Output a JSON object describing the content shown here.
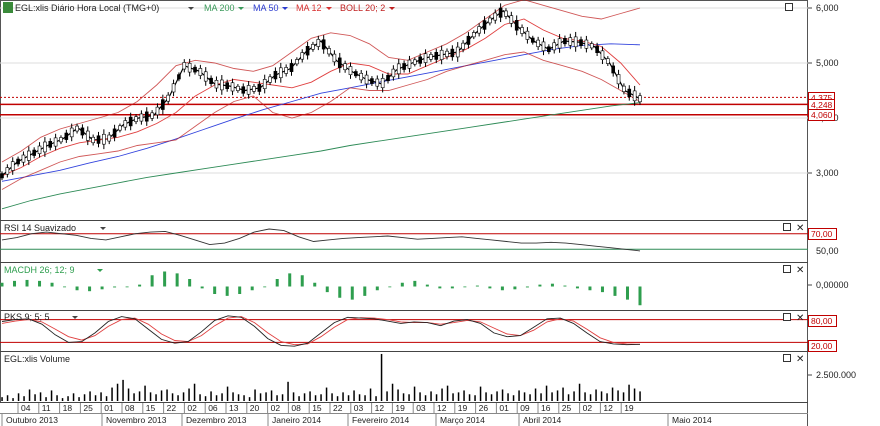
{
  "colors": {
    "price": "#000000",
    "ma200": "#2e8b57",
    "ma50": "#3344dd",
    "ma12": "#e04040",
    "boll": "#c02020",
    "rsi": "#333333",
    "macd_bar": "#2e9e4e",
    "pks_k": "#222222",
    "pks_d": "#e04040",
    "ref_line": "#c00000",
    "volume_bar": "#000000",
    "axis_text": "#222222",
    "legend_ma200": "#3a9a5a",
    "legend_ma50": "#2a3ad0",
    "legend_ma12": "#d83030",
    "legend_boll": "#c02020"
  },
  "icons": [
    "chart-type-icon",
    "window-restore-icon",
    "close-icon",
    "dropdown-arrow-icon"
  ],
  "legend": {
    "title": "EGL:xlis Diário Hora Local (TMG+0)",
    "ma200": "MA 200",
    "ma50": "MA 50",
    "ma12": "MA 12",
    "boll": "BOLL 20; 2"
  },
  "panels": {
    "rsi_title": "RSI 14 Suavizado",
    "macd_title": "MACDH 26; 12; 9",
    "pks_title": "PKS 9; 5; 5",
    "volume_title": "EGL:xlis Volume"
  },
  "price_axis": {
    "ticks": [
      "6,000",
      "5,000",
      "4,000",
      "3,000"
    ],
    "badges": [
      "4,375",
      "4,248",
      "4,060"
    ]
  },
  "rsi_axis": {
    "ticks": [
      "70,00",
      "50,00"
    ]
  },
  "macd_axis": {
    "ticks": [
      "0,00000"
    ]
  },
  "pks_axis": {
    "ticks": [
      "80,00",
      "20,00"
    ]
  },
  "volume_axis": {
    "ticks": [
      "2.500.000"
    ]
  },
  "date_axis": {
    "days": [
      "04",
      "11",
      "18",
      "25",
      "01",
      "08",
      "15",
      "22",
      "02",
      "06",
      "13",
      "20",
      "02",
      "08",
      "15",
      "22",
      "03",
      "12",
      "19",
      "03",
      "12",
      "19",
      "26",
      "01",
      "09",
      "16",
      "25",
      "02",
      "12",
      "19"
    ],
    "months": [
      "Outubro 2013",
      "Novembro 2013",
      "Dezembro 2013",
      "Janeiro 2014",
      "Fevereiro 2014",
      "Março 2014",
      "Abril 2014",
      "Maio 2014"
    ]
  },
  "chart_data": [
    {
      "type": "line",
      "panel": "price",
      "title": "EGL:xlis Diário Hora Local (TMG+0)",
      "ylim": [
        2.2,
        6.2
      ],
      "ref_lines": [
        4.375,
        4.248,
        4.06
      ],
      "series": [
        {
          "name": "Price",
          "values": [
            2.95,
            3.2,
            3.35,
            3.5,
            3.62,
            3.82,
            3.6,
            3.62,
            3.88,
            4.0,
            4.05,
            4.38,
            4.95,
            4.85,
            4.62,
            4.58,
            4.5,
            4.55,
            4.78,
            4.9,
            5.2,
            5.4,
            5.05,
            4.85,
            4.7,
            4.62,
            4.88,
            5.0,
            5.1,
            5.15,
            5.2,
            5.5,
            5.75,
            5.95,
            5.65,
            5.4,
            5.25,
            5.4,
            5.38,
            5.3,
            5.0,
            4.5,
            4.35
          ]
        },
        {
          "name": "MA 200",
          "values": [
            2.35,
            2.5,
            2.62,
            2.72,
            2.82,
            2.92,
            3.0,
            3.08,
            3.16,
            3.24,
            3.32,
            3.4,
            3.5,
            3.58,
            3.66,
            3.74,
            3.82,
            3.9,
            3.98,
            4.06,
            4.14,
            4.22,
            4.28
          ]
        },
        {
          "name": "MA 50",
          "values": [
            2.85,
            2.95,
            3.05,
            3.18,
            3.3,
            3.45,
            3.62,
            3.8,
            3.98,
            4.15,
            4.3,
            4.45,
            4.55,
            4.65,
            4.75,
            4.85,
            4.95,
            5.05,
            5.15,
            5.25,
            5.32,
            5.35,
            5.33
          ]
        },
        {
          "name": "MA 12",
          "values": [
            2.95,
            3.1,
            3.3,
            3.45,
            3.55,
            3.6,
            3.65,
            3.75,
            3.9,
            4.1,
            4.4,
            4.6,
            4.7,
            4.65,
            4.6,
            4.55,
            4.65,
            4.85,
            5.0,
            4.95,
            4.8,
            4.8,
            4.95,
            5.1,
            5.25,
            5.45,
            5.7,
            5.8,
            5.6,
            5.45,
            5.4,
            5.3,
            5.0,
            4.6
          ]
        },
        {
          "name": "BOLL 20; 2 upper",
          "values": [
            3.2,
            3.4,
            3.65,
            3.8,
            3.9,
            4.0,
            4.1,
            4.3,
            4.6,
            4.95,
            5.05,
            5.0,
            4.9,
            4.85,
            4.95,
            5.2,
            5.45,
            5.55,
            5.5,
            5.35,
            5.1,
            5.05,
            5.2,
            5.35,
            5.55,
            5.8,
            6.05,
            6.15,
            6.05,
            5.95,
            5.85,
            5.8,
            5.9,
            6.0
          ]
        },
        {
          "name": "BOLL 20; 2 lower",
          "values": [
            2.7,
            2.9,
            3.05,
            3.2,
            3.3,
            3.35,
            3.4,
            3.5,
            3.55,
            3.6,
            3.85,
            4.1,
            4.3,
            4.4,
            4.1,
            4.0,
            4.1,
            4.3,
            4.55,
            4.5,
            4.5,
            4.6,
            4.7,
            4.85,
            4.95,
            5.05,
            5.15,
            5.2,
            5.05,
            4.95,
            4.85,
            4.7,
            4.5,
            4.3
          ]
        }
      ]
    },
    {
      "type": "line",
      "panel": "rsi",
      "title": "RSI 14 Suavizado",
      "ylim": [
        35,
        85
      ],
      "ref_lines": [
        70,
        50
      ],
      "series": [
        {
          "name": "RSI 14 Suavizado",
          "values": [
            62,
            65,
            70,
            72,
            70,
            68,
            64,
            62,
            66,
            70,
            72,
            73,
            68,
            62,
            56,
            58,
            64,
            72,
            76,
            74,
            66,
            60,
            62,
            64,
            65,
            66,
            67,
            65,
            63,
            64,
            65,
            66,
            64,
            62,
            60,
            58,
            58,
            59,
            58,
            56,
            54,
            52,
            50,
            48
          ]
        }
      ]
    },
    {
      "type": "bar",
      "panel": "macd",
      "title": "MACDH 26; 12; 9",
      "ylim": [
        -0.12,
        0.12
      ],
      "series": [
        {
          "name": "MACDH 26; 12; 9",
          "values": [
            0.02,
            0.03,
            0.035,
            0.03,
            0.02,
            0.0,
            -0.02,
            -0.025,
            -0.015,
            -0.005,
            0.0,
            0.01,
            0.06,
            0.08,
            0.07,
            0.04,
            -0.01,
            -0.04,
            -0.05,
            -0.04,
            -0.02,
            0.0,
            0.04,
            0.07,
            0.06,
            0.02,
            -0.03,
            -0.06,
            -0.07,
            -0.05,
            -0.02,
            0.0,
            0.02,
            0.03,
            0.01,
            -0.01,
            -0.01,
            0.0,
            0.005,
            -0.01,
            -0.02,
            -0.015,
            -0.005,
            0.01,
            0.015,
            0.005,
            -0.01,
            -0.02,
            -0.03,
            -0.05,
            -0.07,
            -0.1
          ]
        }
      ]
    },
    {
      "type": "line",
      "panel": "pks",
      "title": "PKS 9; 5; 5",
      "ylim": [
        0,
        100
      ],
      "ref_lines": [
        80,
        20
      ],
      "series": [
        {
          "name": "PKS %K",
          "values": [
            75,
            80,
            82,
            68,
            40,
            20,
            22,
            45,
            75,
            88,
            82,
            55,
            28,
            18,
            22,
            48,
            78,
            90,
            86,
            62,
            30,
            12,
            10,
            18,
            45,
            72,
            86,
            84,
            82,
            76,
            70,
            74,
            72,
            64,
            76,
            80,
            70,
            45,
            35,
            38,
            60,
            82,
            84,
            70,
            45,
            22,
            16,
            14,
            15
          ]
        },
        {
          "name": "PKS %D",
          "values": [
            70,
            76,
            80,
            74,
            55,
            35,
            26,
            38,
            62,
            80,
            84,
            68,
            42,
            25,
            22,
            38,
            64,
            84,
            88,
            72,
            45,
            22,
            14,
            16,
            35,
            60,
            80,
            85,
            84,
            80,
            74,
            72,
            72,
            68,
            72,
            78,
            74,
            58,
            42,
            38,
            52,
            74,
            82,
            76,
            55,
            32,
            20,
            16,
            15
          ]
        }
      ]
    },
    {
      "type": "bar",
      "panel": "volume",
      "title": "EGL:xlis Volume",
      "ylim": [
        0,
        5000000
      ],
      "series": [
        {
          "name": "EGL:xlis Volume",
          "values": [
            400000,
            600000,
            300000,
            800000,
            500000,
            1200000,
            700000,
            900000,
            400000,
            1100000,
            600000,
            300000,
            500000,
            800000,
            400000,
            700000,
            1000000,
            600000,
            900000,
            500000,
            1400000,
            1800000,
            2200000,
            1300000,
            800000,
            1000000,
            1600000,
            900000,
            700000,
            1100000,
            1200000,
            800000,
            600000,
            900000,
            1300000,
            1800000,
            700000,
            500000,
            1000000,
            600000,
            800000,
            1500000,
            900000,
            700000,
            600000,
            400000,
            1200000,
            800000,
            900000,
            1100000,
            600000,
            700000,
            2000000,
            900000,
            500000,
            800000,
            1000000,
            600000,
            700000,
            1400000,
            800000,
            500000,
            900000,
            600000,
            1100000,
            700000,
            600000,
            1300000,
            500000,
            4900000,
            1000000,
            1800000,
            1200000,
            800000,
            700000,
            1500000,
            900000,
            600000,
            1000000,
            700000,
            1300000,
            1600000,
            800000,
            900000,
            1100000,
            700000,
            600000,
            1500000,
            900000,
            700000,
            1000000,
            1200000,
            800000,
            600000,
            1100000,
            900000,
            700000,
            1300000,
            800000,
            1600000,
            900000,
            1100000,
            1400000,
            700000,
            1000000,
            1800000,
            900000,
            700000,
            1200000,
            1000000,
            800000,
            1400000,
            1100000,
            900000,
            1700000,
            1300000,
            1000000
          ]
        }
      ]
    }
  ]
}
